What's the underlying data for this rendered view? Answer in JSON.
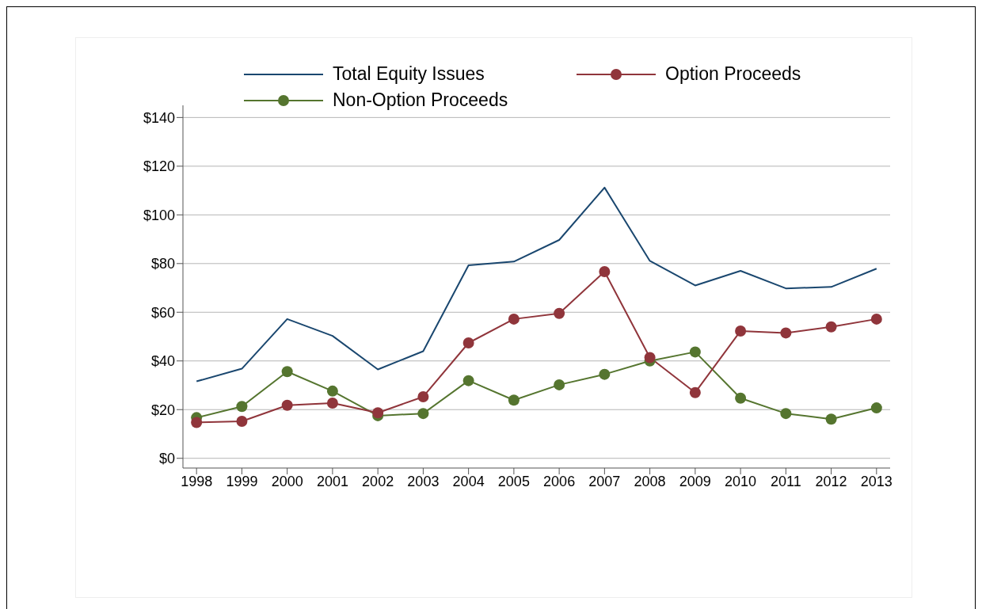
{
  "chart_data": {
    "type": "line",
    "categories": [
      "1998",
      "1999",
      "2000",
      "2001",
      "2002",
      "2003",
      "2004",
      "2005",
      "2006",
      "2007",
      "2008",
      "2009",
      "2010",
      "2011",
      "2012",
      "2013"
    ],
    "series": [
      {
        "name": "Total Equity Issues",
        "color": "#1a476f",
        "marker": "none",
        "values": [
          31.6,
          36.8,
          57.2,
          50.3,
          36.5,
          44.0,
          79.3,
          80.8,
          89.7,
          111.2,
          81.1,
          71.0,
          77.0,
          69.8,
          70.4,
          77.9
        ]
      },
      {
        "name": "Option Proceeds",
        "color": "#90353b",
        "marker": "circle",
        "values": [
          14.7,
          15.2,
          21.8,
          22.7,
          18.7,
          25.3,
          47.4,
          57.2,
          59.5,
          76.7,
          41.4,
          27.0,
          52.3,
          51.5,
          54.0,
          57.2
        ]
      },
      {
        "name": "Non-Option Proceeds",
        "color": "#55752f",
        "marker": "circle",
        "values": [
          16.7,
          21.3,
          35.6,
          27.6,
          17.5,
          18.4,
          31.9,
          23.9,
          30.2,
          34.5,
          40.0,
          43.7,
          24.7,
          18.4,
          16.1,
          20.7
        ]
      }
    ],
    "ylim": [
      -4,
      145
    ],
    "yticks": [
      {
        "value": 0,
        "label": "$0"
      },
      {
        "value": 20,
        "label": "$20"
      },
      {
        "value": 40,
        "label": "$40"
      },
      {
        "value": 60,
        "label": "$60"
      },
      {
        "value": 80,
        "label": "$80"
      },
      {
        "value": 100,
        "label": "$100"
      },
      {
        "value": 120,
        "label": "$120"
      },
      {
        "value": 140,
        "label": "$140"
      }
    ],
    "grid": "y",
    "legend": "top",
    "line_style": "solid"
  }
}
